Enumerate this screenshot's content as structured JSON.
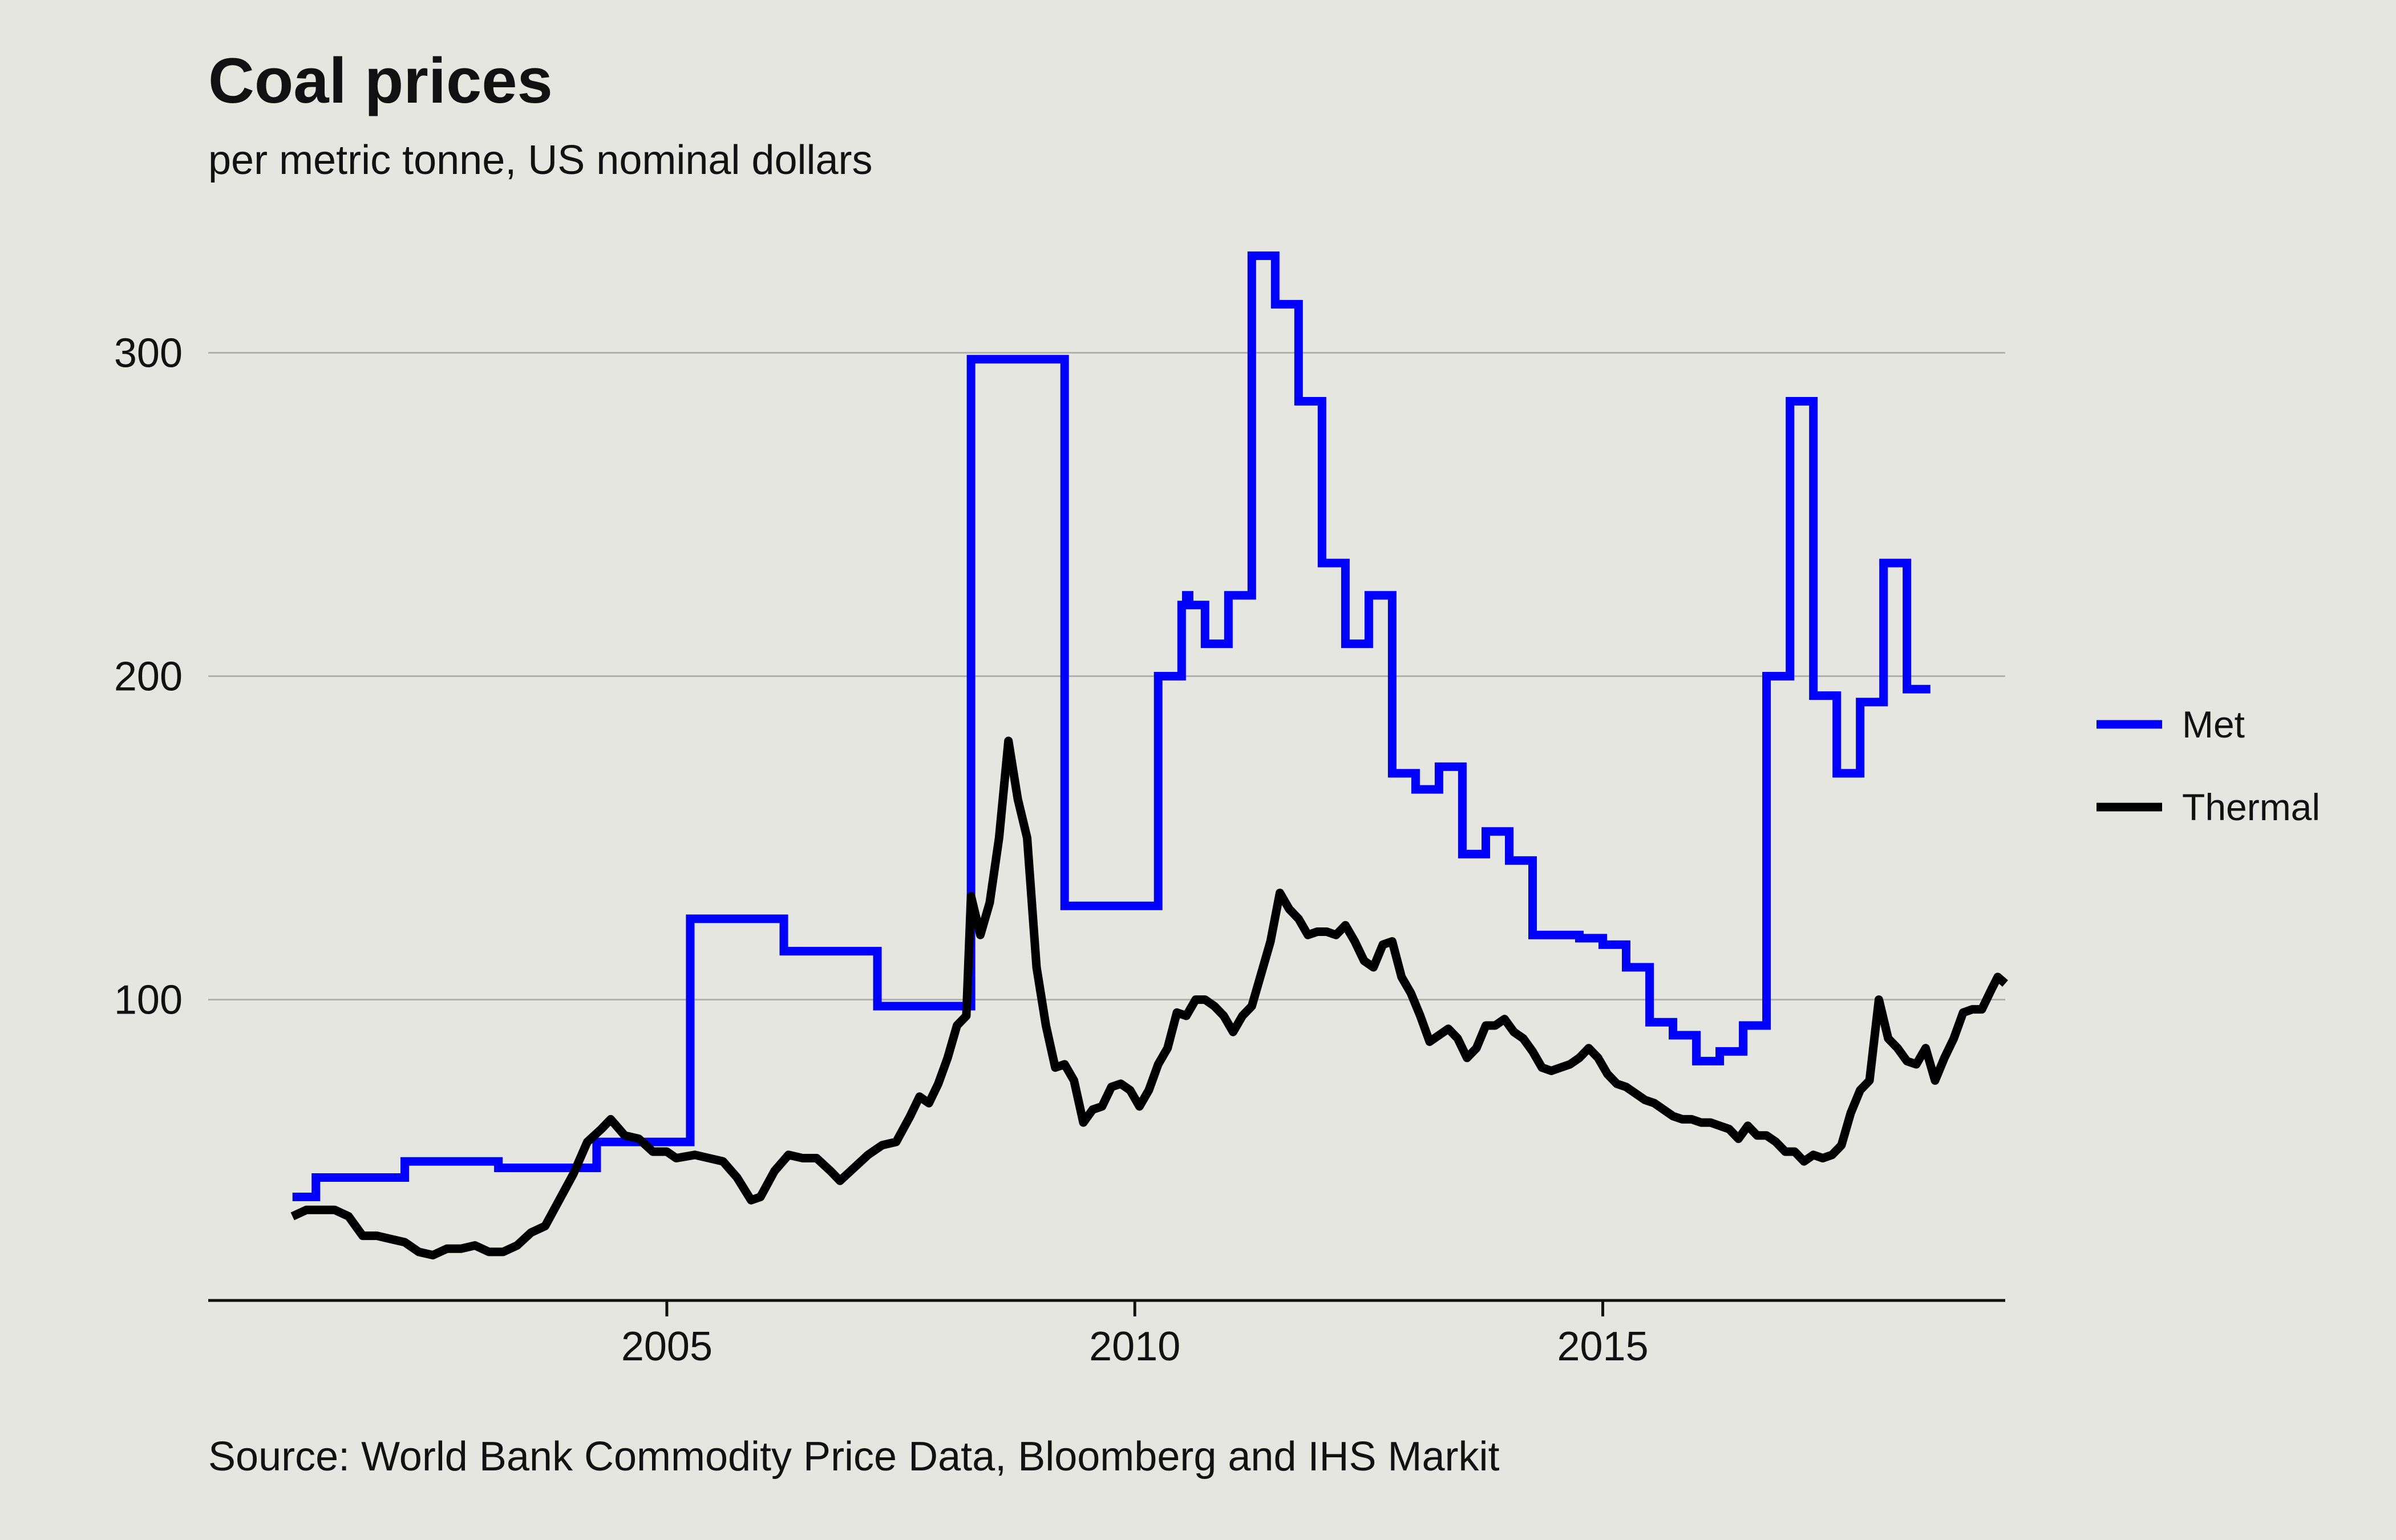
{
  "chart_data": {
    "type": "line",
    "title": "Coal prices",
    "subtitle": "per metric tonne, US nominal dollars",
    "source": "Source: World Bank Commodity Price Data, Bloomberg and IHS Markit",
    "xlabel": "",
    "ylabel": "",
    "xlim": [
      2000.1,
      2019.3
    ],
    "ylim": [
      7,
      335
    ],
    "x_ticks": [
      2005,
      2010,
      2015
    ],
    "y_ticks": [
      100,
      200,
      300
    ],
    "grid": "horizontal",
    "legend_position": "right",
    "series": [
      {
        "name": "Met",
        "color": "#0000ff",
        "step": true,
        "points": [
          [
            2001.0,
            39
          ],
          [
            2001.25,
            39
          ],
          [
            2001.25,
            45
          ],
          [
            2002.2,
            45
          ],
          [
            2002.2,
            50
          ],
          [
            2003.2,
            50
          ],
          [
            2003.2,
            48
          ],
          [
            2004.25,
            48
          ],
          [
            2004.25,
            56
          ],
          [
            2005.25,
            56
          ],
          [
            2005.25,
            125
          ],
          [
            2006.25,
            125
          ],
          [
            2006.25,
            115
          ],
          [
            2007.25,
            115
          ],
          [
            2007.25,
            98
          ],
          [
            2008.25,
            98
          ],
          [
            2008.25,
            298
          ],
          [
            2009.25,
            298
          ],
          [
            2009.25,
            129
          ],
          [
            2010.25,
            129
          ],
          [
            2010.25,
            200
          ],
          [
            2010.5,
            200
          ],
          [
            2010.5,
            222
          ],
          [
            2010.55,
            222
          ],
          [
            2010.55,
            225
          ],
          [
            2010.58,
            225
          ],
          [
            2010.58,
            222
          ],
          [
            2010.75,
            222
          ],
          [
            2010.75,
            210
          ],
          [
            2011.0,
            210
          ],
          [
            2011.0,
            225
          ],
          [
            2011.25,
            225
          ],
          [
            2011.25,
            330
          ],
          [
            2011.5,
            330
          ],
          [
            2011.5,
            315
          ],
          [
            2011.75,
            315
          ],
          [
            2011.75,
            285
          ],
          [
            2012.0,
            285
          ],
          [
            2012.0,
            235
          ],
          [
            2012.25,
            235
          ],
          [
            2012.25,
            210
          ],
          [
            2012.5,
            210
          ],
          [
            2012.5,
            225
          ],
          [
            2012.75,
            225
          ],
          [
            2012.75,
            170
          ],
          [
            2013.0,
            170
          ],
          [
            2013.0,
            165
          ],
          [
            2013.25,
            165
          ],
          [
            2013.25,
            172
          ],
          [
            2013.5,
            172
          ],
          [
            2013.5,
            145
          ],
          [
            2013.75,
            145
          ],
          [
            2013.75,
            152
          ],
          [
            2014.0,
            152
          ],
          [
            2014.0,
            143
          ],
          [
            2014.25,
            143
          ],
          [
            2014.25,
            120
          ],
          [
            2014.75,
            120
          ],
          [
            2014.75,
            119
          ],
          [
            2015.0,
            119
          ],
          [
            2015.0,
            117
          ],
          [
            2015.25,
            117
          ],
          [
            2015.25,
            110
          ],
          [
            2015.5,
            110
          ],
          [
            2015.5,
            93
          ],
          [
            2015.75,
            93
          ],
          [
            2015.75,
            89
          ],
          [
            2016.0,
            89
          ],
          [
            2016.0,
            81
          ],
          [
            2016.25,
            81
          ],
          [
            2016.25,
            84
          ],
          [
            2016.5,
            84
          ],
          [
            2016.5,
            92
          ],
          [
            2016.75,
            92
          ],
          [
            2016.75,
            200
          ],
          [
            2017.0,
            200
          ],
          [
            2017.0,
            285
          ],
          [
            2017.25,
            285
          ],
          [
            2017.25,
            194
          ],
          [
            2017.5,
            194
          ],
          [
            2017.5,
            170
          ],
          [
            2017.75,
            170
          ],
          [
            2017.75,
            192
          ],
          [
            2018.0,
            192
          ],
          [
            2018.0,
            235
          ],
          [
            2018.25,
            235
          ],
          [
            2018.25,
            196
          ],
          [
            2018.5,
            196
          ]
        ]
      },
      {
        "name": "Thermal",
        "color": "#000000",
        "step": false,
        "points": [
          [
            2001.0,
            33
          ],
          [
            2001.15,
            35
          ],
          [
            2001.3,
            35
          ],
          [
            2001.45,
            35
          ],
          [
            2001.6,
            33
          ],
          [
            2001.75,
            27
          ],
          [
            2001.9,
            27
          ],
          [
            2002.05,
            26
          ],
          [
            2002.2,
            25
          ],
          [
            2002.35,
            22
          ],
          [
            2002.5,
            21
          ],
          [
            2002.65,
            23
          ],
          [
            2002.8,
            23
          ],
          [
            2002.95,
            24
          ],
          [
            2003.1,
            22
          ],
          [
            2003.25,
            22
          ],
          [
            2003.4,
            24
          ],
          [
            2003.55,
            28
          ],
          [
            2003.7,
            30
          ],
          [
            2003.85,
            38
          ],
          [
            2004.0,
            46
          ],
          [
            2004.15,
            56
          ],
          [
            2004.3,
            60
          ],
          [
            2004.4,
            63
          ],
          [
            2004.55,
            58
          ],
          [
            2004.7,
            57
          ],
          [
            2004.85,
            53
          ],
          [
            2005.0,
            53
          ],
          [
            2005.1,
            51
          ],
          [
            2005.3,
            52
          ],
          [
            2005.45,
            51
          ],
          [
            2005.6,
            50
          ],
          [
            2005.75,
            45
          ],
          [
            2005.9,
            38
          ],
          [
            2006.0,
            39
          ],
          [
            2006.15,
            47
          ],
          [
            2006.3,
            52
          ],
          [
            2006.45,
            51
          ],
          [
            2006.6,
            51
          ],
          [
            2006.75,
            47
          ],
          [
            2006.85,
            44
          ],
          [
            2007.0,
            48
          ],
          [
            2007.15,
            52
          ],
          [
            2007.3,
            55
          ],
          [
            2007.45,
            56
          ],
          [
            2007.6,
            64
          ],
          [
            2007.7,
            70
          ],
          [
            2007.8,
            68
          ],
          [
            2007.9,
            74
          ],
          [
            2008.0,
            82
          ],
          [
            2008.1,
            92
          ],
          [
            2008.2,
            95
          ],
          [
            2008.25,
            132
          ],
          [
            2008.35,
            120
          ],
          [
            2008.45,
            130
          ],
          [
            2008.55,
            150
          ],
          [
            2008.65,
            180
          ],
          [
            2008.75,
            162
          ],
          [
            2008.85,
            150
          ],
          [
            2008.95,
            110
          ],
          [
            2009.05,
            92
          ],
          [
            2009.15,
            79
          ],
          [
            2009.25,
            80
          ],
          [
            2009.35,
            75
          ],
          [
            2009.45,
            62
          ],
          [
            2009.55,
            66
          ],
          [
            2009.65,
            67
          ],
          [
            2009.75,
            73
          ],
          [
            2009.85,
            74
          ],
          [
            2009.95,
            72
          ],
          [
            2010.05,
            67
          ],
          [
            2010.15,
            72
          ],
          [
            2010.25,
            80
          ],
          [
            2010.35,
            85
          ],
          [
            2010.45,
            96
          ],
          [
            2010.55,
            95
          ],
          [
            2010.65,
            100
          ],
          [
            2010.75,
            100
          ],
          [
            2010.85,
            98
          ],
          [
            2010.95,
            95
          ],
          [
            2011.05,
            90
          ],
          [
            2011.15,
            95
          ],
          [
            2011.25,
            98
          ],
          [
            2011.35,
            108
          ],
          [
            2011.45,
            118
          ],
          [
            2011.55,
            133
          ],
          [
            2011.65,
            128
          ],
          [
            2011.75,
            125
          ],
          [
            2011.85,
            120
          ],
          [
            2011.95,
            121
          ],
          [
            2012.05,
            121
          ],
          [
            2012.15,
            120
          ],
          [
            2012.25,
            123
          ],
          [
            2012.35,
            118
          ],
          [
            2012.45,
            112
          ],
          [
            2012.55,
            110
          ],
          [
            2012.65,
            117
          ],
          [
            2012.75,
            118
          ],
          [
            2012.85,
            107
          ],
          [
            2012.95,
            102
          ],
          [
            2013.05,
            95
          ],
          [
            2013.15,
            87
          ],
          [
            2013.25,
            89
          ],
          [
            2013.35,
            91
          ],
          [
            2013.45,
            88
          ],
          [
            2013.55,
            82
          ],
          [
            2013.65,
            85
          ],
          [
            2013.75,
            92
          ],
          [
            2013.85,
            92
          ],
          [
            2013.95,
            94
          ],
          [
            2014.05,
            90
          ],
          [
            2014.15,
            88
          ],
          [
            2014.25,
            84
          ],
          [
            2014.35,
            79
          ],
          [
            2014.45,
            78
          ],
          [
            2014.55,
            79
          ],
          [
            2014.65,
            80
          ],
          [
            2014.75,
            82
          ],
          [
            2014.85,
            85
          ],
          [
            2014.95,
            82
          ],
          [
            2015.05,
            77
          ],
          [
            2015.15,
            74
          ],
          [
            2015.25,
            73
          ],
          [
            2015.35,
            71
          ],
          [
            2015.45,
            69
          ],
          [
            2015.55,
            68
          ],
          [
            2015.65,
            66
          ],
          [
            2015.75,
            64
          ],
          [
            2015.85,
            63
          ],
          [
            2015.95,
            63
          ],
          [
            2016.05,
            62
          ],
          [
            2016.15,
            62
          ],
          [
            2016.25,
            61
          ],
          [
            2016.35,
            60
          ],
          [
            2016.45,
            57
          ],
          [
            2016.55,
            61
          ],
          [
            2016.65,
            58
          ],
          [
            2016.75,
            58
          ],
          [
            2016.85,
            56
          ],
          [
            2016.95,
            53
          ],
          [
            2017.05,
            53
          ],
          [
            2017.15,
            50
          ],
          [
            2017.25,
            52
          ],
          [
            2017.35,
            51
          ],
          [
            2017.45,
            52
          ],
          [
            2017.55,
            55
          ],
          [
            2017.65,
            65
          ],
          [
            2017.75,
            72
          ],
          [
            2017.85,
            75
          ],
          [
            2017.95,
            100
          ],
          [
            2018.05,
            88
          ],
          [
            2018.15,
            85
          ],
          [
            2018.25,
            81
          ],
          [
            2018.35,
            80
          ],
          [
            2018.45,
            85
          ],
          [
            2018.55,
            75
          ],
          [
            2018.65,
            82
          ],
          [
            2018.75,
            88
          ],
          [
            2018.85,
            96
          ],
          [
            2018.95,
            97
          ],
          [
            2019.05,
            97
          ],
          [
            2019.15,
            103
          ],
          [
            2019.22,
            107
          ],
          [
            2019.3,
            105
          ]
        ]
      }
    ]
  }
}
